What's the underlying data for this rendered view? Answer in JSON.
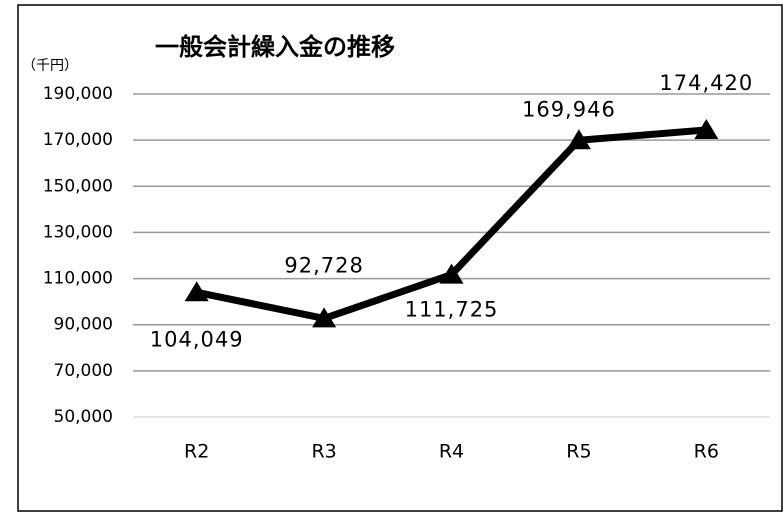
{
  "chart_data": {
    "type": "line",
    "title": "一般会計繰入金の推移",
    "y_unit": "（千円）",
    "categories": [
      "R2",
      "R3",
      "R4",
      "R5",
      "R6"
    ],
    "series": [
      {
        "name": "一般会計繰入金",
        "color": "#000000",
        "values": [
          104049,
          92728,
          111725,
          169946,
          174420
        ],
        "value_labels": [
          "104,049",
          "92,728",
          "111,725",
          "169,946",
          "174,420"
        ]
      }
    ],
    "ylim": [
      50000,
      190000
    ],
    "yticks": [
      {
        "value": 50000,
        "label": "50,000"
      },
      {
        "value": 70000,
        "label": "70,000"
      },
      {
        "value": 90000,
        "label": "90,000"
      },
      {
        "value": 110000,
        "label": "110,000"
      },
      {
        "value": 130000,
        "label": "130,000"
      },
      {
        "value": 150000,
        "label": "150,000"
      },
      {
        "value": 170000,
        "label": "170,000"
      },
      {
        "value": 190000,
        "label": "190,000"
      }
    ],
    "grid": true,
    "marker": "triangle"
  }
}
